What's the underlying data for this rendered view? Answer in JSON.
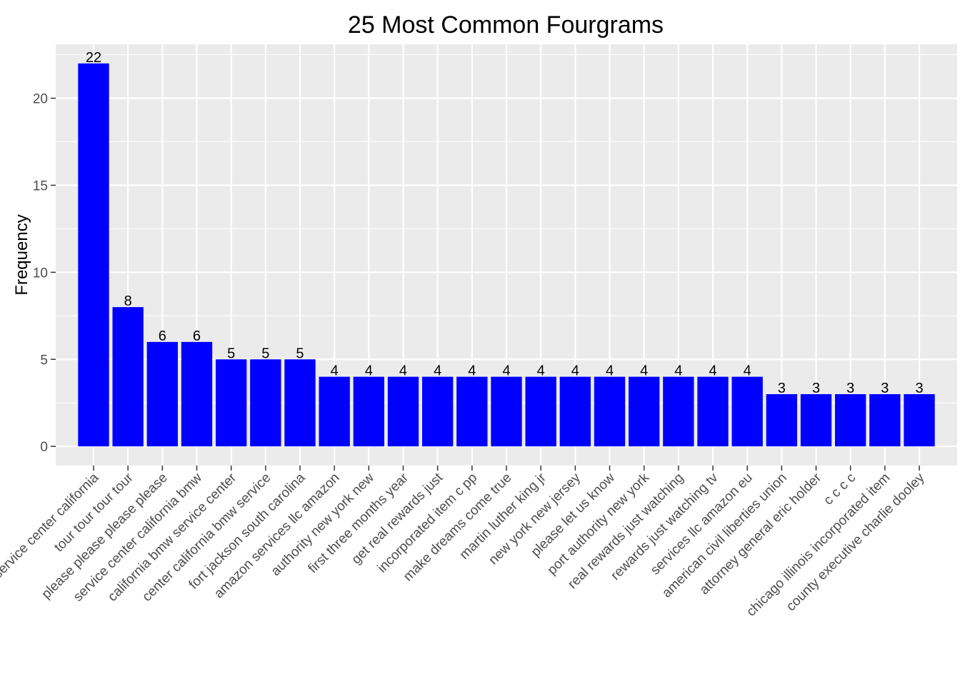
{
  "chart_data": {
    "type": "bar",
    "title": "25 Most Common Fourgrams",
    "xlabel": "",
    "ylabel": "Frequency",
    "ylim": [
      -1.1,
      23.1
    ],
    "yticks": [
      0,
      5,
      10,
      15,
      20
    ],
    "grid": true,
    "legend": "none",
    "bar_color": "#0000ff",
    "panel_color": "#ebebeb",
    "grid_color": "#ffffff",
    "categories": [
      "service center california",
      "tour tour tour tour",
      "please please please please",
      "service center california bmw",
      "california bmw service center",
      "center california bmw service",
      "fort jackson south carolina",
      "amazon services llc amazon",
      "authority new york new",
      "first three months year",
      "get real rewards just",
      "incorporated item c pp",
      "make dreams come true",
      "martin luther king jr",
      "new york new jersey",
      "please let us know",
      "port authority new york",
      "real rewards just watching",
      "rewards just watching tv",
      "services llc amazon eu",
      "american civil liberties union",
      "attorney general eric holder",
      "c c c c",
      "chicago illinois incorporated item",
      "county executive charlie dooley"
    ],
    "values": [
      22,
      8,
      6,
      6,
      5,
      5,
      5,
      4,
      4,
      4,
      4,
      4,
      4,
      4,
      4,
      4,
      4,
      4,
      4,
      4,
      3,
      3,
      3,
      3,
      3
    ],
    "data_labels": [
      "22",
      "8",
      "6",
      "6",
      "5",
      "5",
      "5",
      "4",
      "4",
      "4",
      "4",
      "4",
      "4",
      "4",
      "4",
      "4",
      "4",
      "4",
      "4",
      "4",
      "3",
      "3",
      "3",
      "3",
      "3"
    ]
  }
}
